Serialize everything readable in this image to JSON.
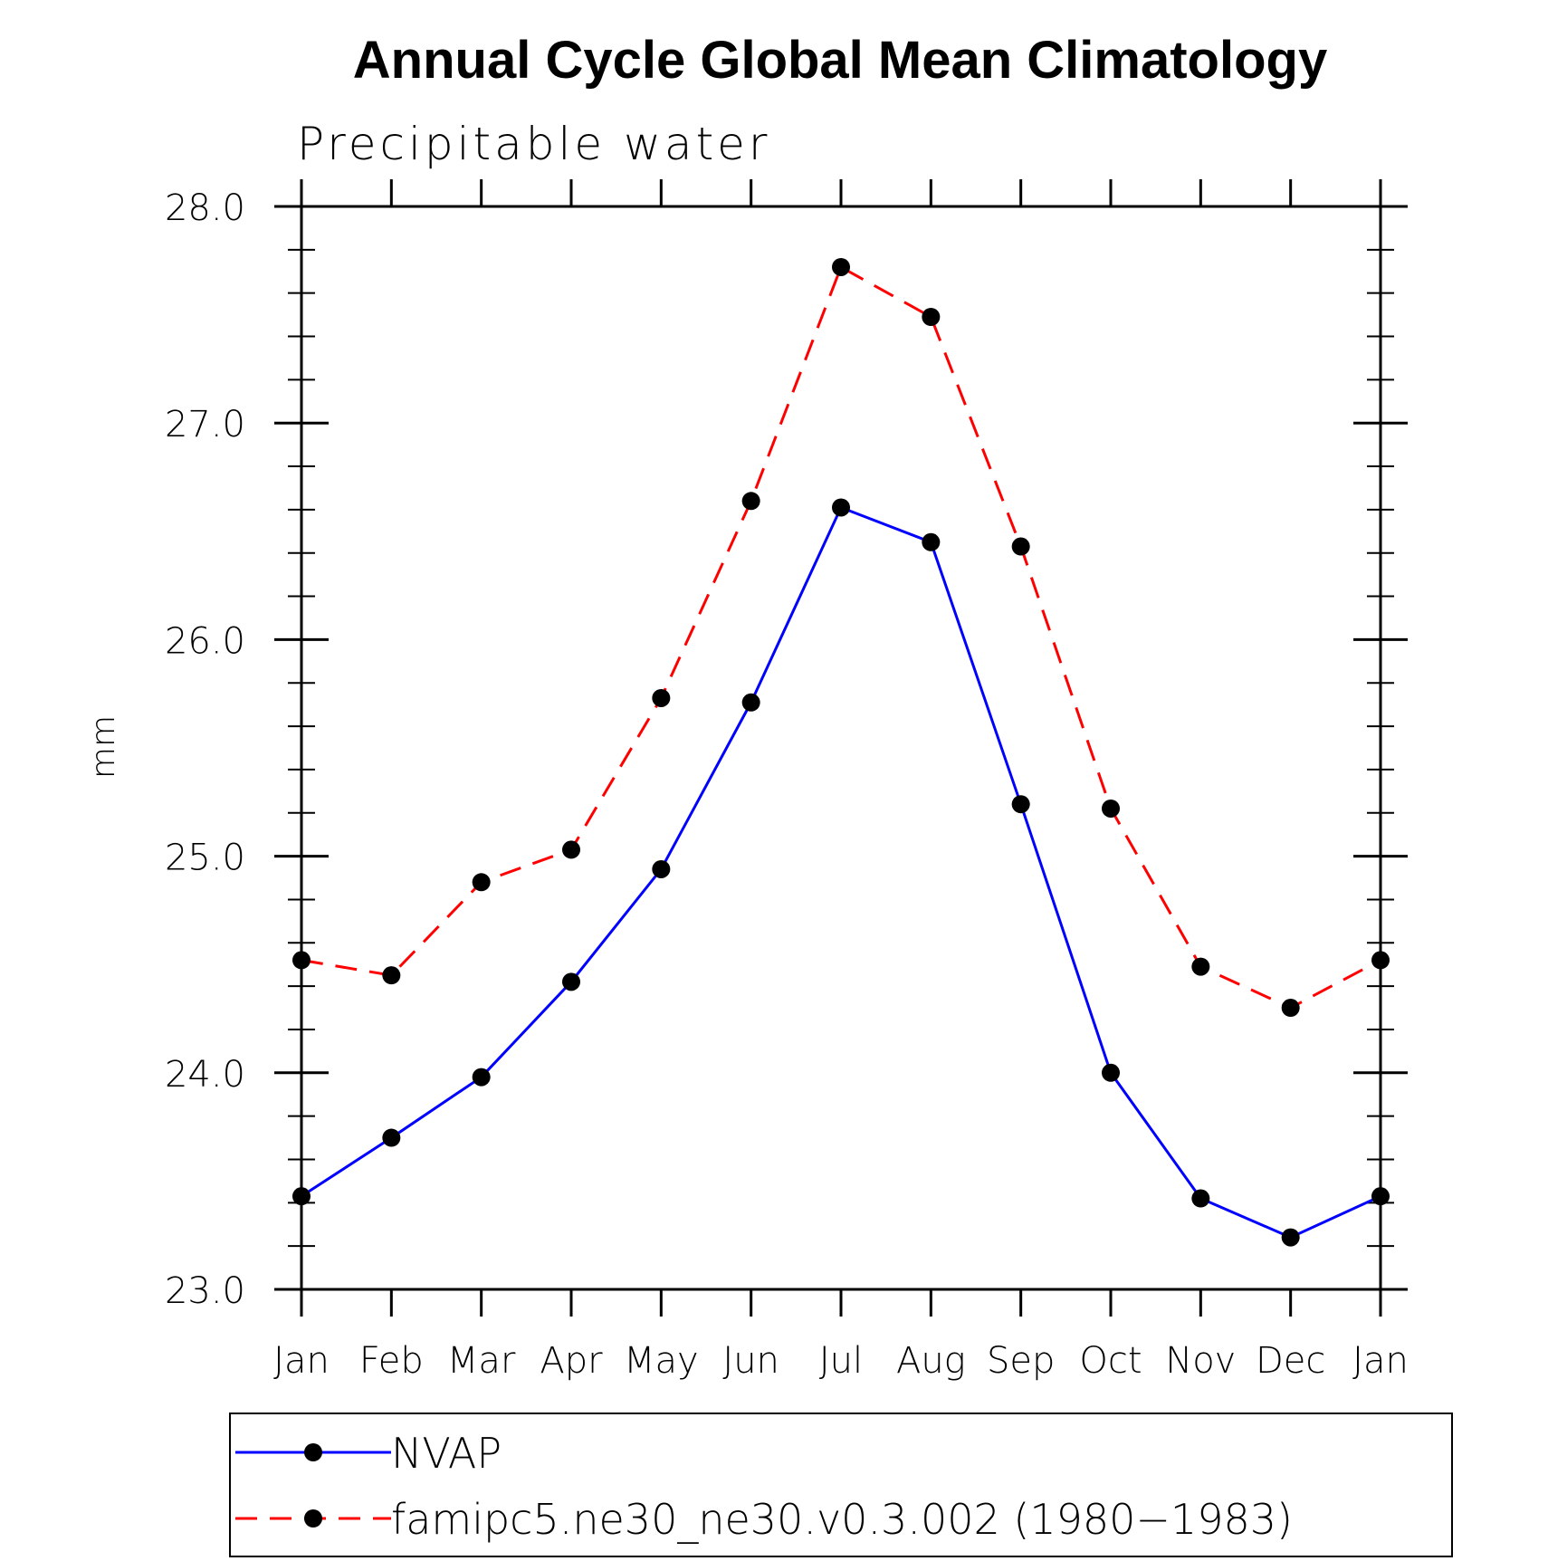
{
  "chart_data": {
    "type": "line",
    "title": "Annual Cycle Global Mean Climatology",
    "subtitle": "Precipitable water",
    "xlabel": "",
    "ylabel": "mm",
    "categories": [
      "Jan",
      "Feb",
      "Mar",
      "Apr",
      "May",
      "Jun",
      "Jul",
      "Aug",
      "Sep",
      "Oct",
      "Nov",
      "Dec",
      "Jan"
    ],
    "ylim": [
      23.0,
      28.0
    ],
    "yticks": [
      "23.0",
      "24.0",
      "25.0",
      "26.0",
      "27.0",
      "28.0"
    ],
    "yticks_values": [
      23.0,
      24.0,
      25.0,
      26.0,
      27.0,
      28.0
    ],
    "grid": false,
    "legend_position": "bottom",
    "series": [
      {
        "name": "NVAP",
        "color": "#0000ff",
        "line_style": "solid",
        "marker": "filled-circle",
        "values": [
          23.43,
          23.7,
          23.98,
          24.42,
          24.94,
          25.71,
          26.61,
          26.45,
          25.24,
          24.0,
          23.42,
          23.24,
          23.43
        ]
      },
      {
        "name": "famipc5.ne30_ne30.v0.3.002 (1980−1983)",
        "color": "#ff0000",
        "line_style": "dashed",
        "marker": "filled-circle",
        "values": [
          24.52,
          24.45,
          24.88,
          25.03,
          25.73,
          26.64,
          27.72,
          27.49,
          26.43,
          25.22,
          24.49,
          24.3,
          24.52
        ]
      }
    ]
  }
}
